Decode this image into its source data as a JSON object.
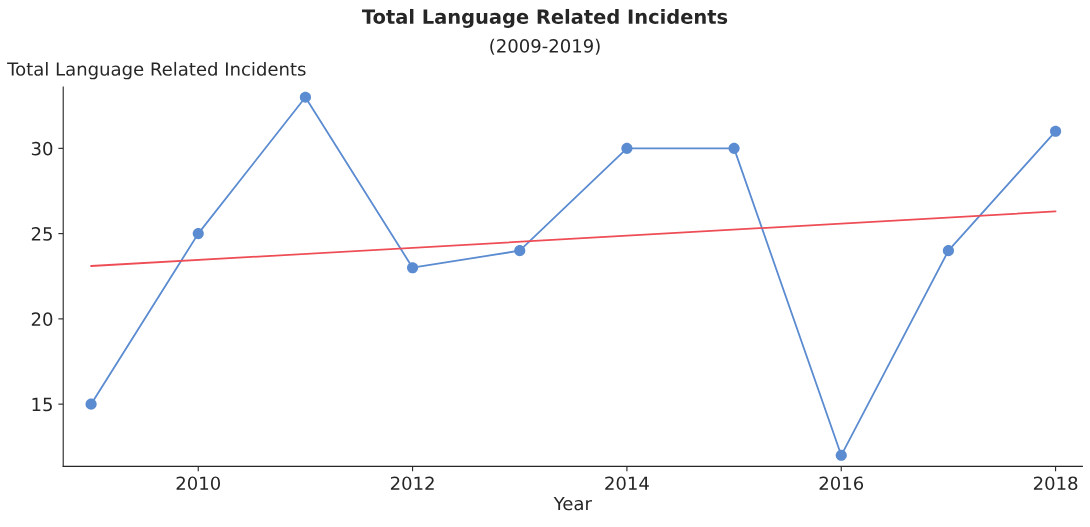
{
  "chart_data": {
    "type": "line",
    "title": "Total Language Related Incidents",
    "subtitle": "(2009-2019)",
    "xlabel": "Year",
    "ylabel": "Total Language Related Incidents",
    "series": [
      {
        "x": [
          2009,
          2010,
          2011,
          2012,
          2013,
          2014,
          2015,
          2016,
          2017,
          2018
        ],
        "values": [
          15,
          25,
          33,
          23,
          24,
          30,
          30,
          12,
          24,
          31
        ],
        "color": "#5b8bd0",
        "marker": "circle"
      },
      {
        "x": [
          2009,
          2018
        ],
        "values": [
          23.1,
          26.3
        ],
        "color": "#ee4d55",
        "marker": "none"
      }
    ],
    "xlim": [
      2008.74,
      2018.25
    ],
    "xticks": [
      2010,
      2012,
      2014,
      2016,
      2018
    ],
    "ylim": [
      11.35,
      33.6
    ],
    "yticks": [
      15,
      20,
      25,
      30
    ],
    "grid": false,
    "legend": false
  }
}
